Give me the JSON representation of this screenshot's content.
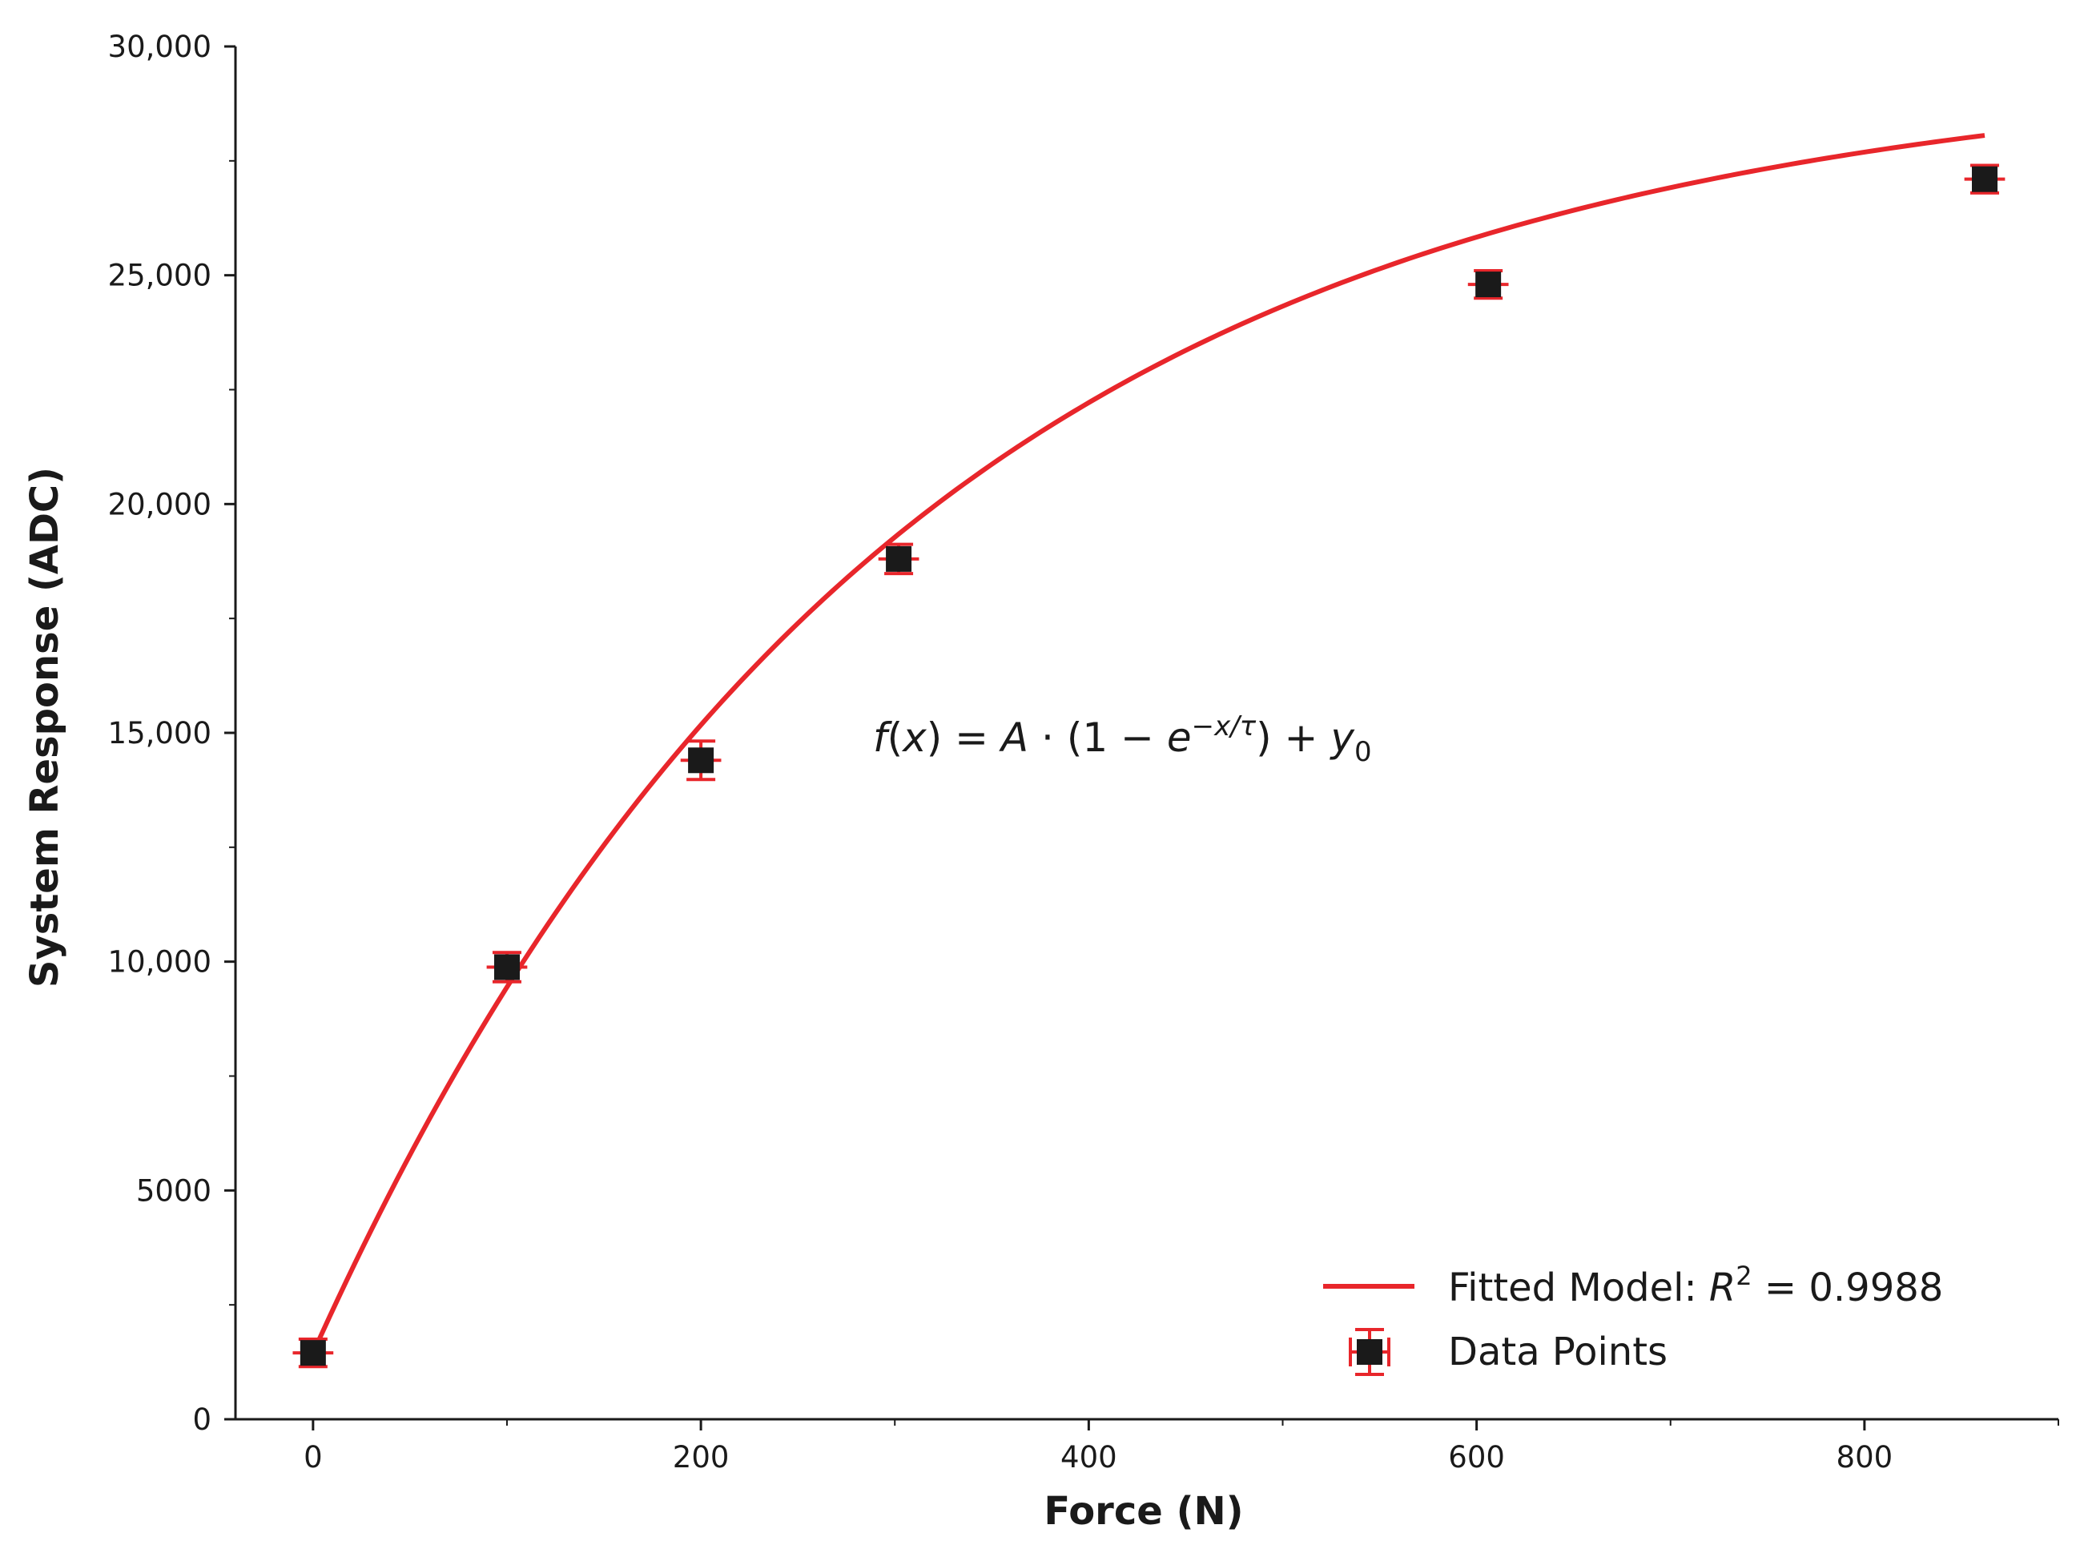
{
  "chart_data": {
    "type": "scatter",
    "xlabel": "Force (N)",
    "ylabel": "System Response (ADC)",
    "xlim": [
      -40,
      900
    ],
    "ylim": [
      0,
      30000
    ],
    "x_ticks": [
      0,
      200,
      400,
      600,
      800
    ],
    "x_tick_labels": [
      "0",
      "200",
      "400",
      "600",
      "800"
    ],
    "x_minor_ticks": [
      100,
      300,
      500,
      700,
      900
    ],
    "y_ticks": [
      0,
      5000,
      10000,
      15000,
      20000,
      25000,
      30000
    ],
    "y_tick_labels": [
      "0",
      "5000",
      "10,000",
      "15,000",
      "20,000",
      "25,000",
      "30,000"
    ],
    "y_minor_ticks": [
      2500,
      7500,
      12500,
      17500,
      22500,
      27500
    ],
    "grid": false,
    "legend_position": "lower-right",
    "annotation": {
      "formula": "f(x) = A·(1 − e^(−x/τ)) + y0"
    },
    "series": [
      {
        "name": "Data Points",
        "kind": "scatter-errorbar",
        "color": "#1a1a1a",
        "errorbar_color": "#e8262b",
        "x": [
          0,
          100,
          200,
          302,
          606,
          862
        ],
        "y": [
          1450,
          9880,
          14400,
          18800,
          24800,
          27100
        ],
        "yerr": [
          300,
          320,
          420,
          320,
          300,
          300
        ],
        "xerr": [
          8,
          8,
          8,
          8,
          8,
          8
        ]
      },
      {
        "name": "Fitted Model",
        "kind": "line",
        "color": "#e8262b",
        "legend_label": "Fitted Model: R² = 0.9988",
        "legend_prefix": "Fitted Model: ",
        "r_squared": "0.9988",
        "model": {
          "A": 28200,
          "tau": 300,
          "y0": 1450
        },
        "x_range": [
          0,
          862
        ]
      }
    ]
  }
}
